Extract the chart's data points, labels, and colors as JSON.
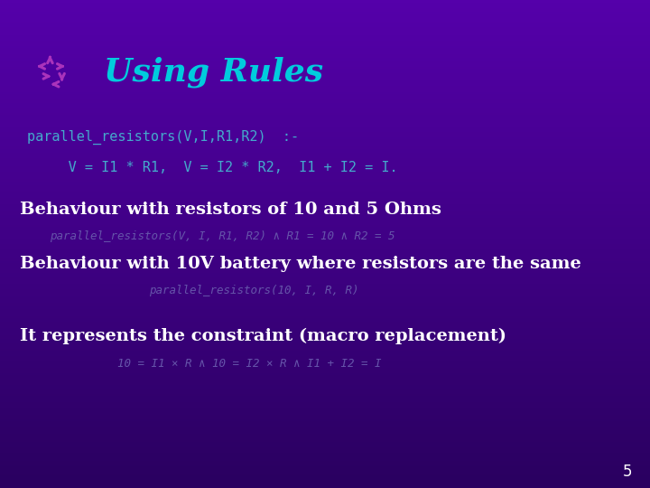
{
  "title": "Using Rules",
  "bg_top": "#2a0060",
  "bg_bottom": "#5500aa",
  "bg_color": "#3d0090",
  "title_color": "#00ccdd",
  "title_fontsize": 26,
  "mono_color": "#44aacc",
  "white_color": "#ffffff",
  "dim_mono_color": "#6655aa",
  "icon_color": "#aa33bb",
  "line1_mono": "parallel_resistors(V,I,R1,R2)  :-",
  "line2_mono": "     V = I1 * R1,  V = I2 * R2,  I1 + I2 = I.",
  "text1": "Behaviour with resistors of 10 and 5 Ohms",
  "math1": "parallel_resistors(V, I, R1, R2) ∧ R1 = 10 ∧ R2 = 5",
  "text2": "Behaviour with 10V battery where resistors are the same",
  "math2": "parallel_resistors(10, I, R, R)",
  "text3": "It represents the constraint (macro replacement)",
  "math3": "10 = I1 × R ∧ 10 = I2 × R ∧ I1 + I2 = I",
  "page_num": "5",
  "mono_fontsize": 11,
  "text_fontsize": 14,
  "math_fontsize": 9
}
